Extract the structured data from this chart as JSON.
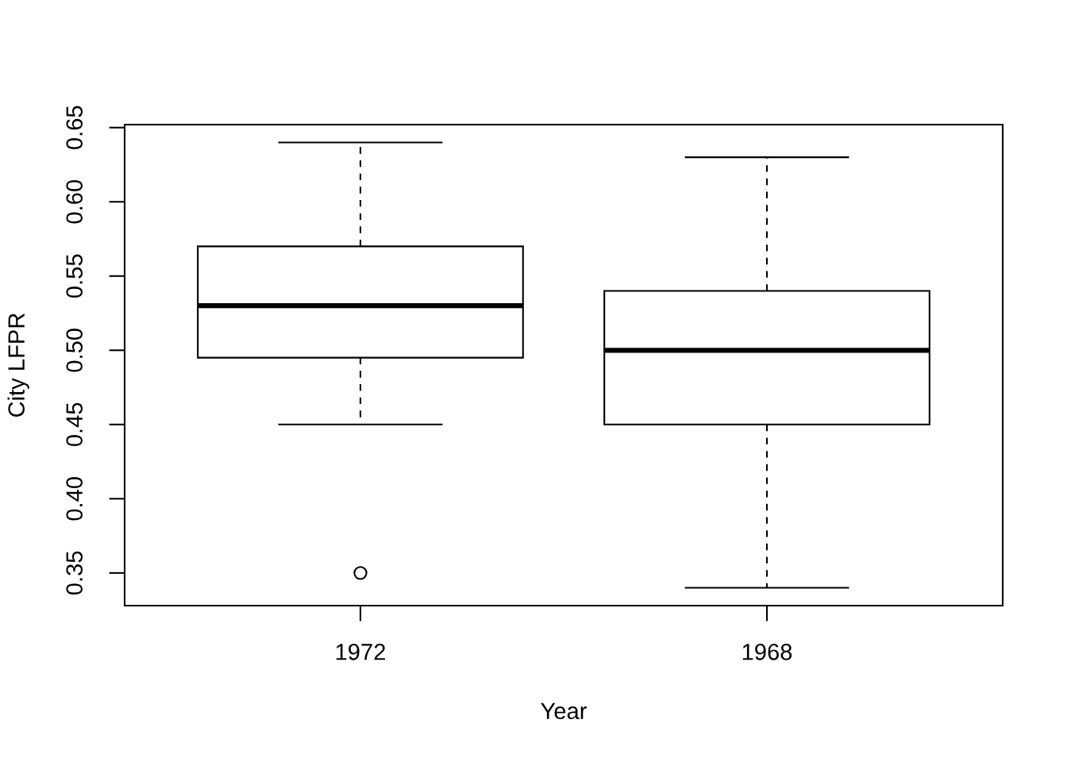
{
  "chart_data": {
    "type": "box",
    "xlabel": "Year",
    "ylabel": "City LFPR",
    "categories": [
      "1972",
      "1968"
    ],
    "boxes": [
      {
        "low": 0.45,
        "q1": 0.495,
        "median": 0.53,
        "q3": 0.57,
        "high": 0.64,
        "outliers": [
          0.35
        ]
      },
      {
        "low": 0.34,
        "q1": 0.45,
        "median": 0.5,
        "q3": 0.54,
        "high": 0.63
      }
    ],
    "ylim": [
      0.328,
      0.652
    ],
    "yticks": [
      0.35,
      {
        "value": 0.4,
        "label": "0.40"
      },
      0.45,
      {
        "value": 0.5,
        "label": "0.50"
      },
      0.55,
      {
        "value": 0.6,
        "label": "0.60"
      },
      0.65
    ]
  }
}
